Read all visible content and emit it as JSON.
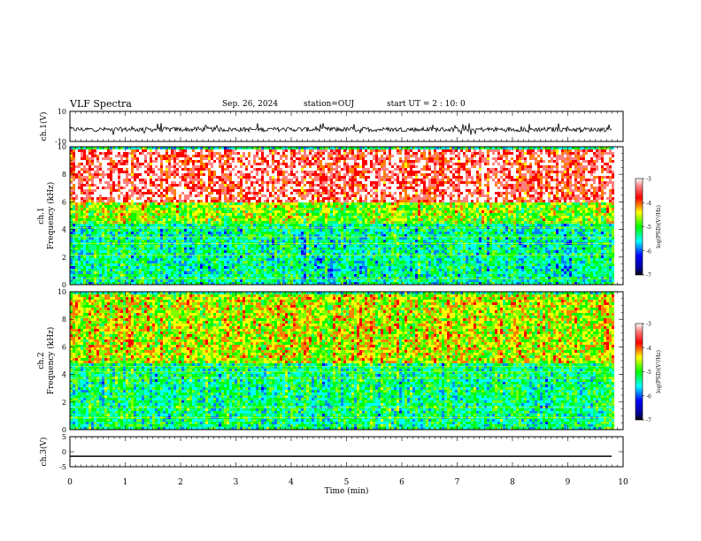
{
  "header": {
    "title": "VLF Spectra",
    "date": "Sep. 26, 2024",
    "station": "station=OUJ",
    "start_ut": "start UT =  2 : 10: 0"
  },
  "chart_data": [
    {
      "type": "line",
      "title": "",
      "ylabel": "ch.1(V)",
      "ylim": [
        -10,
        10
      ],
      "yticks": [
        "10",
        "-10"
      ],
      "series": [
        {
          "description_only_visual": true,
          "values_mean": -2,
          "noise_range": [
            -6,
            2
          ]
        }
      ]
    },
    {
      "type": "heatmap",
      "ylabel_prefix": "ch.1",
      "ylabel": "Frequency (kHz)",
      "ylim": [
        0,
        10
      ],
      "yticks": [
        "0",
        "2",
        "4",
        "6",
        "8",
        "10"
      ],
      "colorbar": {
        "label": "log(PSD)(V²/Hz)",
        "range": [
          -7,
          -3
        ],
        "ticks": [
          "-3",
          "-4",
          "-5",
          "-6",
          "-7"
        ]
      },
      "bands": [
        {
          "from_khz": 0,
          "to_khz": 4.6,
          "level": -5.6
        },
        {
          "from_khz": 4.6,
          "to_khz": 6.0,
          "level": -4.8
        },
        {
          "from_khz": 6.0,
          "to_khz": 10,
          "level": -3.4
        }
      ]
    },
    {
      "type": "heatmap",
      "ylabel_prefix": "ch.2",
      "ylabel": "Frequency (kHz)",
      "ylim": [
        0,
        10
      ],
      "yticks": [
        "0",
        "2",
        "4",
        "6",
        "8",
        "10"
      ],
      "colorbar": {
        "label": "log(PSD)(V²/Hz)",
        "range": [
          -7,
          -3
        ],
        "ticks": [
          "-3",
          "-4",
          "-5",
          "-6",
          "-7"
        ]
      },
      "bands": [
        {
          "from_khz": 0,
          "to_khz": 5.0,
          "level": -5.5
        },
        {
          "from_khz": 5.0,
          "to_khz": 10,
          "level": -4.6
        }
      ]
    },
    {
      "type": "line",
      "ylabel": "ch.3(V)",
      "ylim": [
        -5,
        5
      ],
      "yticks": [
        "5",
        "0",
        "-5"
      ],
      "series": [
        {
          "values_mean": -1.5
        }
      ]
    }
  ],
  "xaxis": {
    "label": "Time (min)",
    "xlim": [
      0,
      10
    ],
    "ticks": [
      "0",
      "1",
      "2",
      "3",
      "4",
      "5",
      "6",
      "7",
      "8",
      "9",
      "10"
    ],
    "data_end_min": 9.8
  },
  "colors": {
    "palette": [
      "#000080",
      "#0000ff",
      "#0080ff",
      "#00ffff",
      "#00ff80",
      "#00ff00",
      "#80ff00",
      "#ffff00",
      "#ff8000",
      "#ff0000",
      "#ff8080",
      "#ffffff"
    ]
  }
}
